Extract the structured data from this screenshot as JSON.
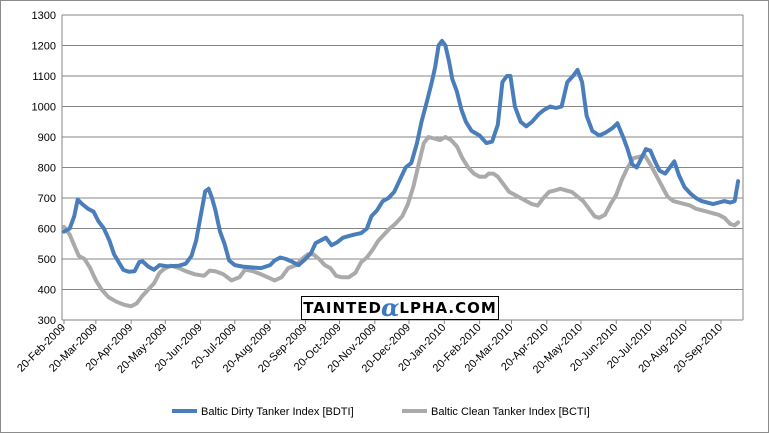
{
  "chart_data": {
    "type": "line",
    "title": "",
    "xlabel": "",
    "ylabel": "",
    "ylim": [
      300,
      1300
    ],
    "yticks": [
      300,
      400,
      500,
      600,
      700,
      800,
      900,
      1000,
      1100,
      1200,
      1300
    ],
    "x_tick_labels": [
      "20-Feb-2009",
      "20-Mar-2009",
      "20-Apr-2009",
      "20-May-2009",
      "20-Jun-2009",
      "20-Jul-2009",
      "20-Aug-2009",
      "20-Sep-2009",
      "20-Oct-2009",
      "20-Nov-2009",
      "20-Dec-2009",
      "20-Jan-2010",
      "20-Feb-2010",
      "20-Mar-2010",
      "20-Apr-2010",
      "20-May-2010",
      "20-Jun-2010",
      "20-Jul-2010",
      "20-Aug-2010",
      "20-Sep-2010"
    ],
    "grid": "horizontal",
    "legend_position": "bottom",
    "series": [
      {
        "name": "Baltic Dirty Tanker Index [BDTI]",
        "color": "#4a7ebb",
        "points": [
          [
            "20-Feb-2009",
            590
          ],
          [
            "25-Feb-2009",
            600
          ],
          [
            "01-Mar-2009",
            640
          ],
          [
            "04-Mar-2009",
            695
          ],
          [
            "08-Mar-2009",
            680
          ],
          [
            "13-Mar-2009",
            665
          ],
          [
            "18-Mar-2009",
            655
          ],
          [
            "22-Mar-2009",
            625
          ],
          [
            "27-Mar-2009",
            600
          ],
          [
            "01-Apr-2009",
            560
          ],
          [
            "05-Apr-2009",
            515
          ],
          [
            "09-Apr-2009",
            490
          ],
          [
            "13-Apr-2009",
            465
          ],
          [
            "18-Apr-2009",
            458
          ],
          [
            "23-Apr-2009",
            460
          ],
          [
            "27-Apr-2009",
            490
          ],
          [
            "30-Apr-2009",
            492
          ],
          [
            "05-May-2009",
            475
          ],
          [
            "10-May-2009",
            465
          ],
          [
            "15-May-2009",
            480
          ],
          [
            "22-May-2009",
            476
          ],
          [
            "01-Jun-2009",
            478
          ],
          [
            "07-Jun-2009",
            485
          ],
          [
            "12-Jun-2009",
            510
          ],
          [
            "16-Jun-2009",
            560
          ],
          [
            "20-Jun-2009",
            640
          ],
          [
            "24-Jun-2009",
            722
          ],
          [
            "27-Jun-2009",
            730
          ],
          [
            "30-Jun-2009",
            700
          ],
          [
            "03-Jul-2009",
            660
          ],
          [
            "07-Jul-2009",
            590
          ],
          [
            "11-Jul-2009",
            550
          ],
          [
            "15-Jul-2009",
            495
          ],
          [
            "20-Jul-2009",
            480
          ],
          [
            "27-Jul-2009",
            475
          ],
          [
            "05-Aug-2009",
            472
          ],
          [
            "12-Aug-2009",
            470
          ],
          [
            "20-Aug-2009",
            480
          ],
          [
            "24-Aug-2009",
            495
          ],
          [
            "29-Aug-2009",
            505
          ],
          [
            "03-Sep-2009",
            500
          ],
          [
            "09-Sep-2009",
            490
          ],
          [
            "14-Sep-2009",
            480
          ],
          [
            "20-Sep-2009",
            500
          ],
          [
            "25-Sep-2009",
            520
          ],
          [
            "29-Sep-2009",
            552
          ],
          [
            "03-Oct-2009",
            560
          ],
          [
            "08-Oct-2009",
            570
          ],
          [
            "13-Oct-2009",
            545
          ],
          [
            "18-Oct-2009",
            555
          ],
          [
            "23-Oct-2009",
            570
          ],
          [
            "28-Oct-2009",
            575
          ],
          [
            "02-Nov-2009",
            580
          ],
          [
            "08-Nov-2009",
            585
          ],
          [
            "13-Nov-2009",
            600
          ],
          [
            "17-Nov-2009",
            640
          ],
          [
            "22-Nov-2009",
            660
          ],
          [
            "27-Nov-2009",
            690
          ],
          [
            "02-Dec-2009",
            700
          ],
          [
            "07-Dec-2009",
            720
          ],
          [
            "12-Dec-2009",
            760
          ],
          [
            "17-Dec-2009",
            800
          ],
          [
            "22-Dec-2009",
            815
          ],
          [
            "27-Dec-2009",
            880
          ],
          [
            "31-Dec-2009",
            950
          ],
          [
            "05-Jan-2010",
            1020
          ],
          [
            "09-Jan-2010",
            1080
          ],
          [
            "12-Jan-2010",
            1130
          ],
          [
            "15-Jan-2010",
            1200
          ],
          [
            "18-Jan-2010",
            1215
          ],
          [
            "21-Jan-2010",
            1200
          ],
          [
            "24-Jan-2010",
            1150
          ],
          [
            "27-Jan-2010",
            1090
          ],
          [
            "31-Jan-2010",
            1050
          ],
          [
            "04-Feb-2010",
            990
          ],
          [
            "08-Feb-2010",
            950
          ],
          [
            "13-Feb-2010",
            920
          ],
          [
            "20-Feb-2010",
            905
          ],
          [
            "26-Feb-2010",
            880
          ],
          [
            "03-Mar-2010",
            885
          ],
          [
            "08-Mar-2010",
            940
          ],
          [
            "12-Mar-2010",
            1080
          ],
          [
            "16-Mar-2010",
            1100
          ],
          [
            "19-Mar-2010",
            1100
          ],
          [
            "23-Mar-2010",
            1000
          ],
          [
            "28-Mar-2010",
            950
          ],
          [
            "02-Apr-2010",
            935
          ],
          [
            "07-Apr-2010",
            950
          ],
          [
            "13-Apr-2010",
            975
          ],
          [
            "18-Apr-2010",
            990
          ],
          [
            "23-Apr-2010",
            1000
          ],
          [
            "28-Apr-2010",
            995
          ],
          [
            "03-May-2010",
            1000
          ],
          [
            "08-May-2010",
            1080
          ],
          [
            "13-May-2010",
            1100
          ],
          [
            "17-May-2010",
            1120
          ],
          [
            "21-May-2010",
            1080
          ],
          [
            "25-May-2010",
            970
          ],
          [
            "30-May-2010",
            920
          ],
          [
            "05-Jun-2010",
            905
          ],
          [
            "11-Jun-2010",
            915
          ],
          [
            "17-Jun-2010",
            930
          ],
          [
            "21-Jun-2010",
            945
          ],
          [
            "26-Jun-2010",
            900
          ],
          [
            "30-Jun-2010",
            860
          ],
          [
            "04-Jul-2010",
            810
          ],
          [
            "08-Jul-2010",
            800
          ],
          [
            "12-Jul-2010",
            830
          ],
          [
            "16-Jul-2010",
            860
          ],
          [
            "20-Jul-2010",
            855
          ],
          [
            "24-Jul-2010",
            820
          ],
          [
            "28-Jul-2010",
            790
          ],
          [
            "02-Aug-2010",
            780
          ],
          [
            "06-Aug-2010",
            800
          ],
          [
            "10-Aug-2010",
            820
          ],
          [
            "14-Aug-2010",
            775
          ],
          [
            "19-Aug-2010",
            735
          ],
          [
            "24-Aug-2010",
            715
          ],
          [
            "29-Aug-2010",
            700
          ],
          [
            "03-Sep-2010",
            690
          ],
          [
            "08-Sep-2010",
            685
          ],
          [
            "13-Sep-2010",
            680
          ],
          [
            "18-Sep-2010",
            685
          ],
          [
            "23-Sep-2010",
            690
          ],
          [
            "28-Sep-2010",
            685
          ],
          [
            "02-Oct-2010",
            690
          ],
          [
            "05-Oct-2010",
            755
          ]
        ]
      },
      {
        "name": "Baltic Clean Tanker Index [BCTI]",
        "color": "#aaaaaa",
        "points": [
          [
            "20-Feb-2009",
            605
          ],
          [
            "25-Feb-2009",
            580
          ],
          [
            "01-Mar-2009",
            545
          ],
          [
            "05-Mar-2009",
            510
          ],
          [
            "10-Mar-2009",
            500
          ],
          [
            "15-Mar-2009",
            470
          ],
          [
            "20-Mar-2009",
            430
          ],
          [
            "25-Mar-2009",
            400
          ],
          [
            "31-Mar-2009",
            375
          ],
          [
            "07-Apr-2009",
            360
          ],
          [
            "14-Apr-2009",
            350
          ],
          [
            "20-Apr-2009",
            345
          ],
          [
            "25-Apr-2009",
            355
          ],
          [
            "30-Apr-2009",
            380
          ],
          [
            "05-May-2009",
            400
          ],
          [
            "10-May-2009",
            420
          ],
          [
            "15-May-2009",
            455
          ],
          [
            "20-May-2009",
            470
          ],
          [
            "25-May-2009",
            478
          ],
          [
            "01-Jun-2009",
            470
          ],
          [
            "07-Jun-2009",
            460
          ],
          [
            "15-Jun-2009",
            450
          ],
          [
            "23-Jun-2009",
            445
          ],
          [
            "28-Jun-2009",
            462
          ],
          [
            "03-Jul-2009",
            460
          ],
          [
            "10-Jul-2009",
            450
          ],
          [
            "17-Jul-2009",
            430
          ],
          [
            "24-Jul-2009",
            440
          ],
          [
            "29-Jul-2009",
            465
          ],
          [
            "05-Aug-2009",
            460
          ],
          [
            "12-Aug-2009",
            450
          ],
          [
            "18-Aug-2009",
            440
          ],
          [
            "24-Aug-2009",
            430
          ],
          [
            "30-Aug-2009",
            440
          ],
          [
            "05-Sep-2009",
            470
          ],
          [
            "12-Sep-2009",
            480
          ],
          [
            "17-Sep-2009",
            500
          ],
          [
            "22-Sep-2009",
            515
          ],
          [
            "27-Sep-2009",
            515
          ],
          [
            "02-Oct-2009",
            500
          ],
          [
            "07-Oct-2009",
            480
          ],
          [
            "12-Oct-2009",
            470
          ],
          [
            "17-Oct-2009",
            445
          ],
          [
            "22-Oct-2009",
            440
          ],
          [
            "28-Oct-2009",
            440
          ],
          [
            "03-Nov-2009",
            455
          ],
          [
            "08-Nov-2009",
            490
          ],
          [
            "13-Nov-2009",
            505
          ],
          [
            "18-Nov-2009",
            530
          ],
          [
            "23-Nov-2009",
            560
          ],
          [
            "28-Nov-2009",
            580
          ],
          [
            "03-Dec-2009",
            600
          ],
          [
            "08-Dec-2009",
            615
          ],
          [
            "14-Dec-2009",
            640
          ],
          [
            "19-Dec-2009",
            680
          ],
          [
            "24-Dec-2009",
            740
          ],
          [
            "29-Dec-2009",
            820
          ],
          [
            "02-Jan-2010",
            880
          ],
          [
            "06-Jan-2010",
            900
          ],
          [
            "11-Jan-2010",
            895
          ],
          [
            "16-Jan-2010",
            890
          ],
          [
            "21-Jan-2010",
            900
          ],
          [
            "26-Jan-2010",
            890
          ],
          [
            "31-Jan-2010",
            870
          ],
          [
            "05-Feb-2010",
            830
          ],
          [
            "10-Feb-2010",
            800
          ],
          [
            "15-Feb-2010",
            780
          ],
          [
            "20-Feb-2010",
            770
          ],
          [
            "25-Feb-2010",
            770
          ],
          [
            "28-Feb-2010",
            780
          ],
          [
            "04-Mar-2010",
            780
          ],
          [
            "08-Mar-2010",
            770
          ],
          [
            "13-Mar-2010",
            745
          ],
          [
            "18-Mar-2010",
            720
          ],
          [
            "23-Mar-2010",
            710
          ],
          [
            "28-Mar-2010",
            700
          ],
          [
            "02-Apr-2010",
            690
          ],
          [
            "07-Apr-2010",
            680
          ],
          [
            "12-Apr-2010",
            675
          ],
          [
            "17-Apr-2010",
            700
          ],
          [
            "22-Apr-2010",
            720
          ],
          [
            "27-Apr-2010",
            725
          ],
          [
            "02-May-2010",
            730
          ],
          [
            "07-May-2010",
            725
          ],
          [
            "12-May-2010",
            720
          ],
          [
            "17-May-2010",
            705
          ],
          [
            "22-May-2010",
            690
          ],
          [
            "27-May-2010",
            665
          ],
          [
            "01-Jun-2010",
            640
          ],
          [
            "05-Jun-2010",
            635
          ],
          [
            "10-Jun-2010",
            645
          ],
          [
            "15-Jun-2010",
            680
          ],
          [
            "20-Jun-2010",
            710
          ],
          [
            "25-Jun-2010",
            760
          ],
          [
            "30-Jun-2010",
            800
          ],
          [
            "05-Jul-2010",
            830
          ],
          [
            "10-Jul-2010",
            835
          ],
          [
            "15-Jul-2010",
            840
          ],
          [
            "20-Jul-2010",
            810
          ],
          [
            "25-Jul-2010",
            775
          ],
          [
            "30-Jul-2010",
            740
          ],
          [
            "04-Aug-2010",
            705
          ],
          [
            "09-Aug-2010",
            690
          ],
          [
            "14-Aug-2010",
            685
          ],
          [
            "19-Aug-2010",
            680
          ],
          [
            "24-Aug-2010",
            675
          ],
          [
            "29-Aug-2010",
            665
          ],
          [
            "03-Sep-2010",
            660
          ],
          [
            "08-Sep-2010",
            655
          ],
          [
            "13-Sep-2010",
            650
          ],
          [
            "18-Sep-2010",
            645
          ],
          [
            "23-Sep-2010",
            635
          ],
          [
            "28-Sep-2010",
            615
          ],
          [
            "02-Oct-2010",
            610
          ],
          [
            "05-Oct-2010",
            620
          ]
        ]
      }
    ]
  },
  "watermark": {
    "prefix": "TAINTED",
    "alpha": "α",
    "suffix": "LPHA.COM"
  }
}
